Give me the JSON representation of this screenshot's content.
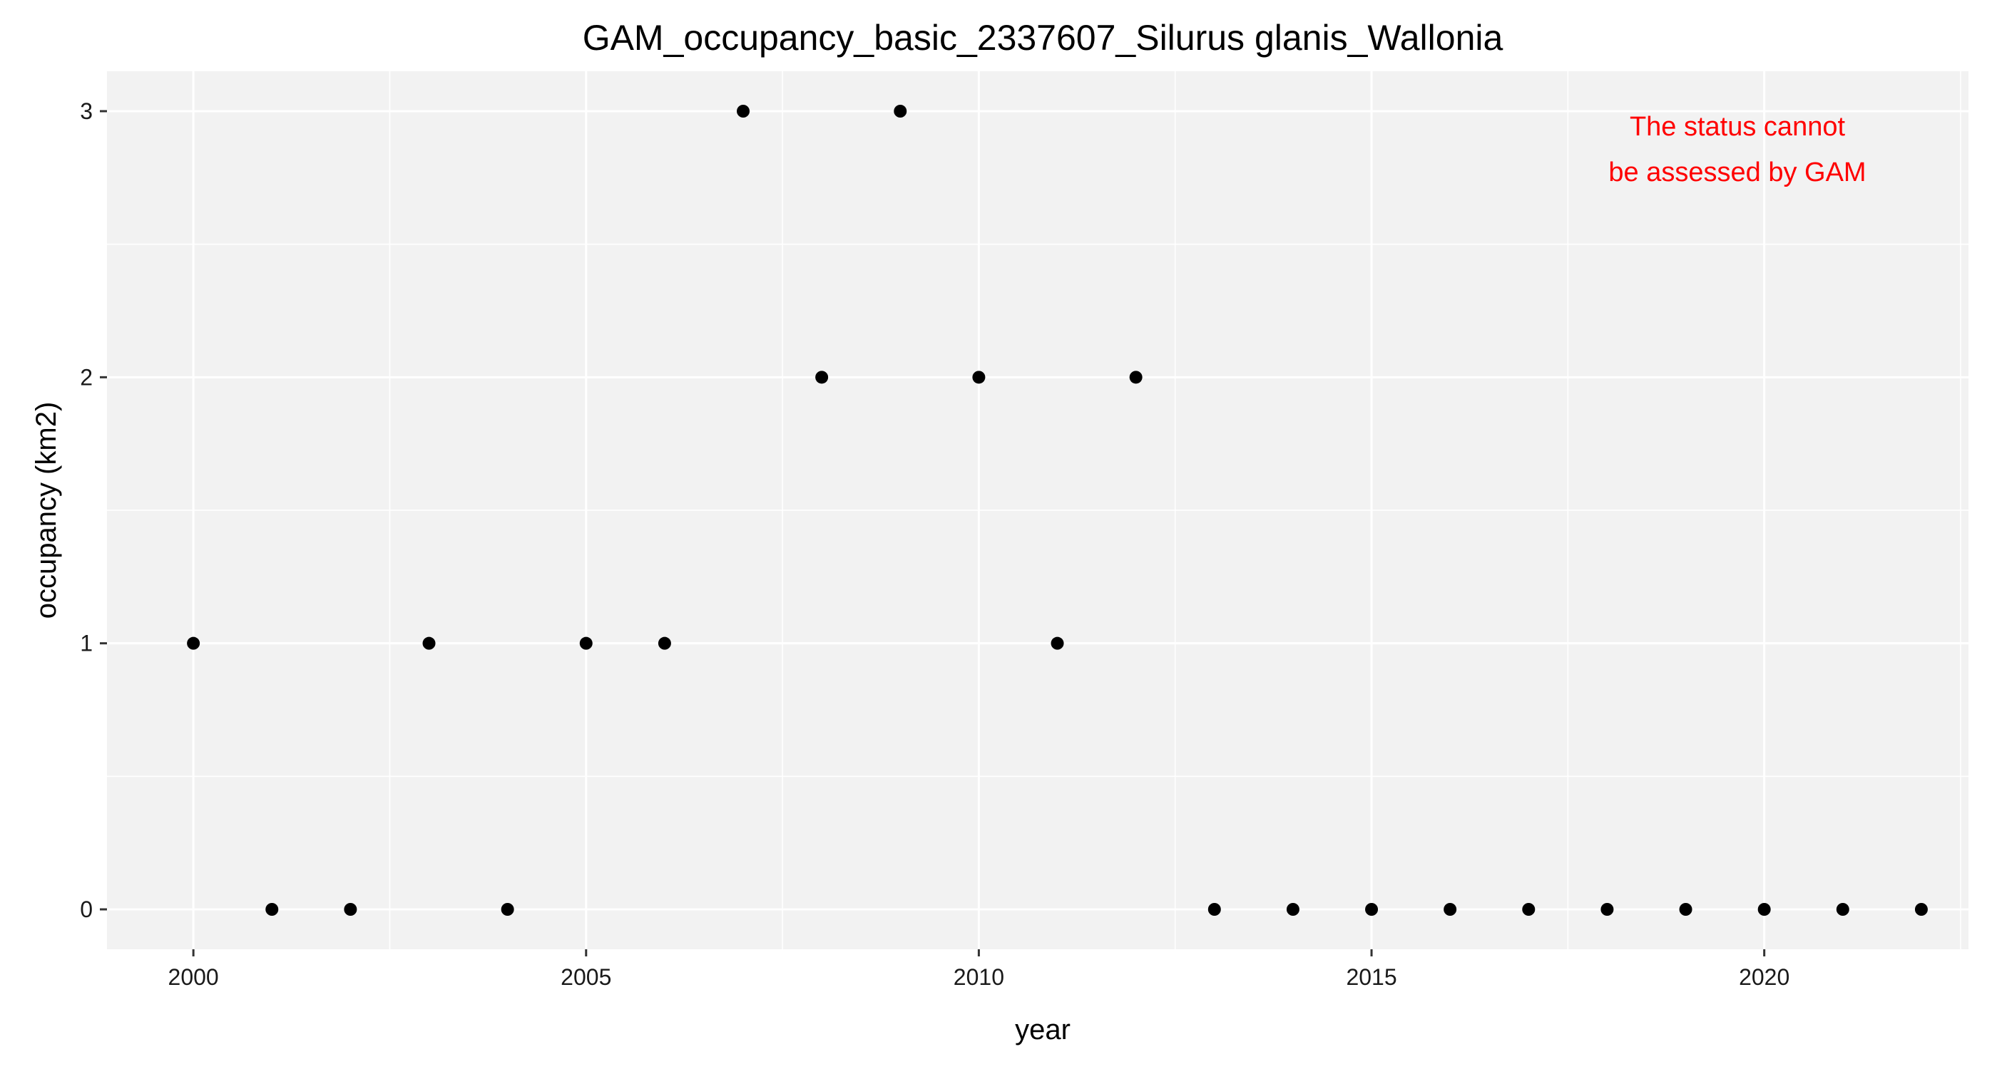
{
  "chart_data": {
    "type": "scatter",
    "title": "GAM_occupancy_basic_2337607_Silurus glanis_Wallonia",
    "xlabel": "year",
    "ylabel": "occupancy (km2)",
    "xlim": [
      1998.9,
      2022.6
    ],
    "ylim": [
      -0.15,
      3.15
    ],
    "x_ticks": [
      2000,
      2005,
      2010,
      2015,
      2020
    ],
    "y_ticks": [
      0,
      1,
      2,
      3
    ],
    "grid": true,
    "legend": "none",
    "x": [
      2000,
      2001,
      2002,
      2003,
      2004,
      2005,
      2006,
      2007,
      2008,
      2009,
      2010,
      2011,
      2012,
      2013,
      2014,
      2015,
      2016,
      2017,
      2018,
      2019,
      2020,
      2021,
      2022
    ],
    "y": [
      1,
      0,
      0,
      1,
      0,
      1,
      1,
      3,
      2,
      3,
      2,
      1,
      2,
      0,
      0,
      0,
      0,
      0,
      0,
      0,
      0,
      0,
      0
    ],
    "annotation": {
      "lines": [
        "The status cannot",
        "be assessed by GAM"
      ],
      "color": "#ff0000"
    },
    "colors": {
      "panel": "#f2f2f2",
      "grid_major": "#ffffff",
      "point": "#000000"
    }
  }
}
